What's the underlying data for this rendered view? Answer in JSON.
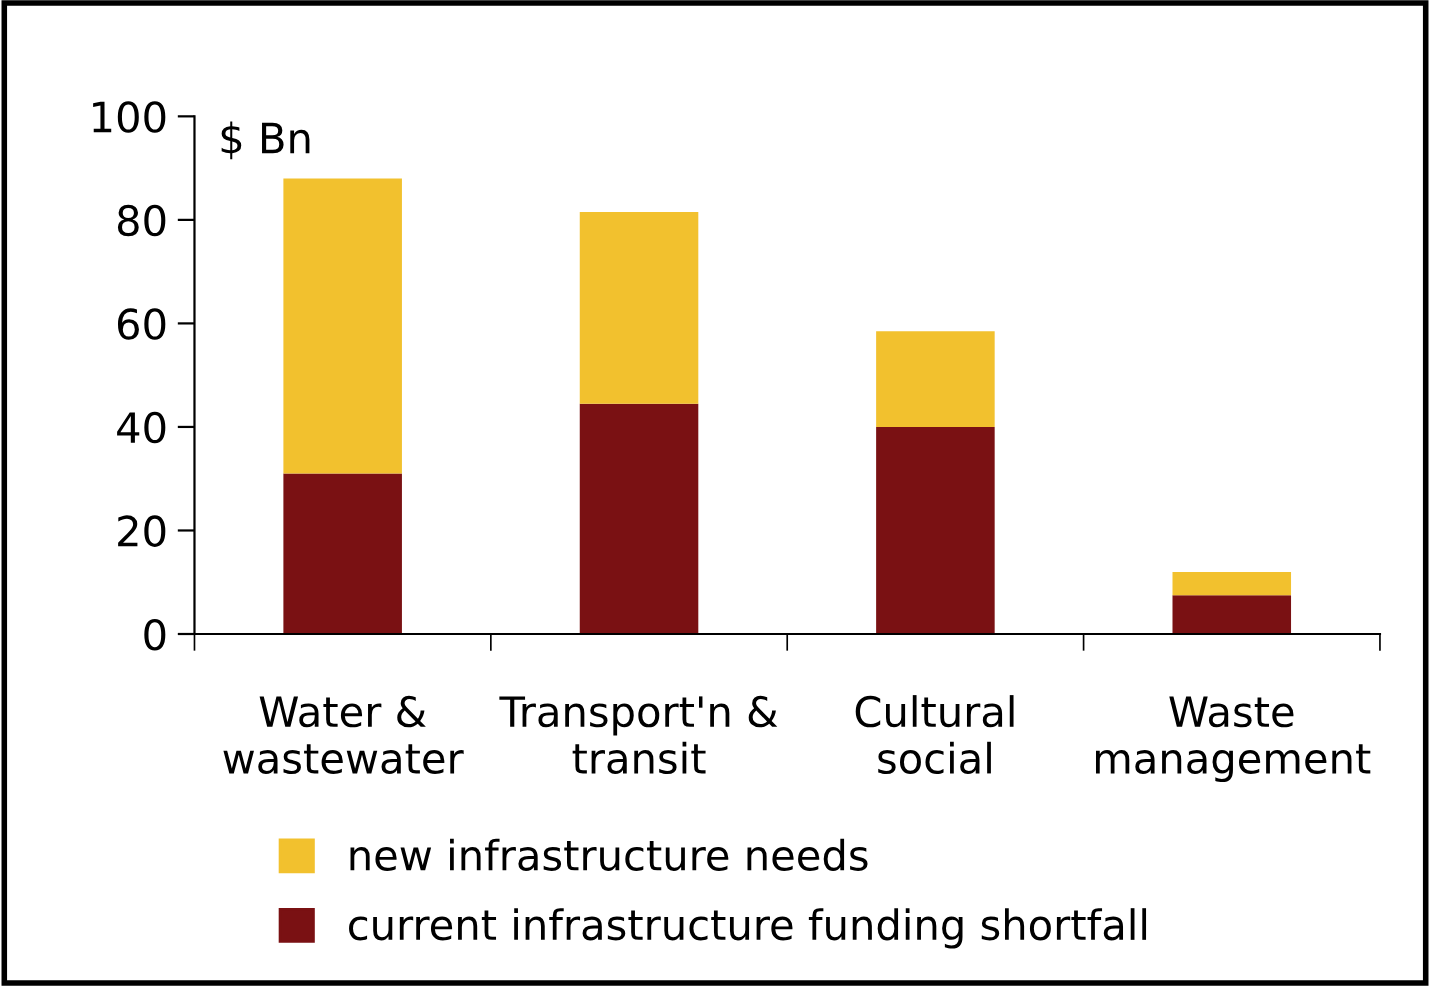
{
  "chart_data": {
    "type": "bar",
    "stacked": true,
    "ylabel": "$ Bn",
    "categories": [
      "Water &\nwastewater",
      "Transport'n &\ntransit",
      "Cultural\nsocial",
      "Waste\nmanagement"
    ],
    "series": [
      {
        "name": "current infrastructure funding shortfall",
        "color": "#7a1113",
        "values": [
          31,
          44.5,
          40,
          7.5
        ]
      },
      {
        "name": "new infrastructure needs",
        "color": "#f2c12e",
        "values": [
          57,
          37,
          18.5,
          4.5
        ]
      }
    ],
    "ylim": [
      0,
      100
    ],
    "yticks": [
      0,
      20,
      40,
      60,
      80,
      100
    ],
    "grid": false,
    "legend": "bottom"
  }
}
